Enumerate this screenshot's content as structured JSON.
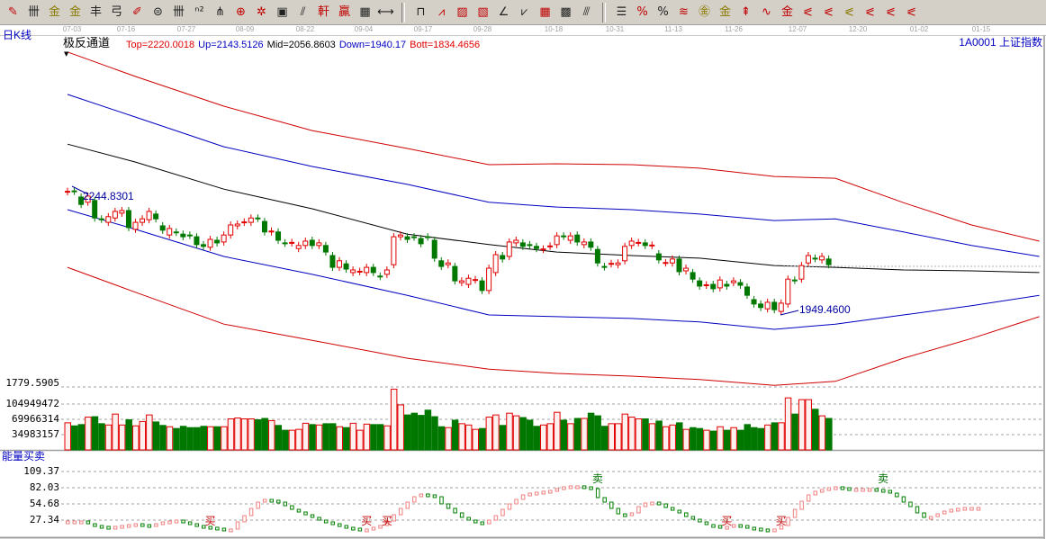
{
  "toolbar": {
    "icons": [
      {
        "name": "draw-pencil",
        "glyph": "✎",
        "tone": "red"
      },
      {
        "name": "vertical-lines",
        "glyph": "卌",
        "tone": ""
      },
      {
        "name": "golden-section",
        "glyph": "金",
        "tone": "gold"
      },
      {
        "name": "golden-section-2",
        "glyph": "金",
        "tone": "gold"
      },
      {
        "name": "fibonacci-lines",
        "glyph": "丰",
        "tone": ""
      },
      {
        "name": "spiral",
        "glyph": "弓",
        "tone": ""
      },
      {
        "name": "pencil-ruler",
        "glyph": "✐",
        "tone": "red"
      },
      {
        "name": "cycle-circle",
        "glyph": "⊜",
        "tone": ""
      },
      {
        "name": "period-lines",
        "glyph": "卌",
        "tone": ""
      },
      {
        "name": "fibonacci-n2",
        "glyph": "ⁿ²",
        "tone": ""
      },
      {
        "name": "pitchfork",
        "glyph": "⋔",
        "tone": ""
      },
      {
        "name": "target-circle",
        "glyph": "⊕",
        "tone": "red"
      },
      {
        "name": "star-target",
        "glyph": "✲",
        "tone": "red"
      },
      {
        "name": "square-target",
        "glyph": "▣",
        "tone": ""
      },
      {
        "name": "speed-lines",
        "glyph": "⫽",
        "tone": ""
      },
      {
        "name": "gann-red",
        "glyph": "軒",
        "tone": "red"
      },
      {
        "name": "gann-box",
        "glyph": "贏",
        "tone": "red"
      },
      {
        "name": "calendar-grid",
        "glyph": "▦",
        "tone": ""
      },
      {
        "name": "horizontal-measure",
        "glyph": "⟷",
        "tone": ""
      },
      {
        "name": "separator",
        "glyph": "",
        "tone": ""
      },
      {
        "name": "box-line",
        "glyph": "⊓",
        "tone": ""
      },
      {
        "name": "fan-lines",
        "glyph": "⩘",
        "tone": "red"
      },
      {
        "name": "box-fan",
        "glyph": "▨",
        "tone": "red"
      },
      {
        "name": "box-fan-red",
        "glyph": "▧",
        "tone": "red"
      },
      {
        "name": "angle-line",
        "glyph": "∠",
        "tone": ""
      },
      {
        "name": "zigzag",
        "glyph": "⩗",
        "tone": ""
      },
      {
        "name": "grid",
        "glyph": "▦",
        "tone": "red"
      },
      {
        "name": "grid-arrow",
        "glyph": "▩",
        "tone": ""
      },
      {
        "name": "parallel-diagonal",
        "glyph": "⫻",
        "tone": ""
      },
      {
        "name": "separator",
        "glyph": "",
        "tone": ""
      },
      {
        "name": "level-lines",
        "glyph": "☰",
        "tone": ""
      },
      {
        "name": "percent-line",
        "glyph": "%",
        "tone": "red"
      },
      {
        "name": "percent",
        "glyph": "%",
        "tone": ""
      },
      {
        "name": "percent-lines",
        "glyph": "≋",
        "tone": "red"
      },
      {
        "name": "gold-circle",
        "glyph": "㊎",
        "tone": "gold"
      },
      {
        "name": "gold-lines",
        "glyph": "金",
        "tone": "gold"
      },
      {
        "name": "arrow-pen",
        "glyph": "⇞",
        "tone": "red"
      },
      {
        "name": "wave-line",
        "glyph": "∿",
        "tone": "red"
      },
      {
        "name": "gold-box",
        "glyph": "金",
        "tone": "red"
      },
      {
        "name": "j-lines",
        "glyph": "⪕",
        "tone": "red"
      },
      {
        "name": "f-lines",
        "glyph": "⪕",
        "tone": "red"
      },
      {
        "name": "gold-angle",
        "glyph": "⪕",
        "tone": "gold"
      },
      {
        "name": "red-lines",
        "glyph": "⪕",
        "tone": "red"
      },
      {
        "name": "red-lines-2",
        "glyph": "⪕",
        "tone": "red"
      },
      {
        "name": "four-lines",
        "glyph": "⪕",
        "tone": "red"
      }
    ]
  },
  "date_axis": {
    "ticks": [
      "07-03",
      "07-16",
      "07-27",
      "08-09",
      "08-22",
      "09-04",
      "09-17",
      "09-28",
      "10-18",
      "10-31",
      "11-13",
      "11-26",
      "12-07",
      "12-20",
      "01-02",
      "01-15"
    ]
  },
  "main_panel": {
    "period_label": "日K线",
    "indicator_name": "极反通道",
    "params": {
      "top": "Top=2220.0018",
      "up": "Up=2143.5126",
      "mid": "Mid=2056.8603",
      "down": "Down=1940.17",
      "bott": "Bott=1834.4656"
    },
    "security": "1A0001  上证指数",
    "high_label": "2244.8301",
    "low_label": "1949.4600",
    "colors": {
      "up": "#e00000",
      "down": "#007800",
      "top": "#d00000",
      "band": "#0000c0",
      "mid": "#000000"
    }
  },
  "volume_panel": {
    "labels": [
      "1779.5905",
      "104949472",
      "69966314",
      "34983157"
    ]
  },
  "energy_panel": {
    "title": "能量买卖",
    "labels": [
      "109.37",
      "82.03",
      "54.68",
      "27.34"
    ],
    "signals": [
      {
        "bar": 21,
        "text": "买",
        "type": "buy"
      },
      {
        "bar": 44,
        "text": "买",
        "type": "buy"
      },
      {
        "bar": 47,
        "text": "买",
        "type": "buy"
      },
      {
        "bar": 78,
        "text": "卖",
        "type": "sell"
      },
      {
        "bar": 97,
        "text": "买",
        "type": "buy"
      },
      {
        "bar": 105,
        "text": "买",
        "type": "buy"
      },
      {
        "bar": 120,
        "text": "卖",
        "type": "sell"
      }
    ],
    "colors": {
      "rise": "#f08080",
      "fall": "#008000",
      "buy": "#c00000",
      "sell": "#007000"
    }
  },
  "chart_data": {
    "type": "candlestick",
    "candles_open_close": [
      [
        2231,
        2232
      ],
      [
        2233,
        2232
      ],
      [
        2219,
        2202
      ],
      [
        2207,
        2221
      ],
      [
        2211,
        2171
      ],
      [
        2169,
        2168
      ],
      [
        2161,
        2174
      ],
      [
        2171,
        2186
      ],
      [
        2182,
        2188
      ],
      [
        2188,
        2149
      ],
      [
        2145,
        2161
      ],
      [
        2161,
        2169
      ],
      [
        2167,
        2186
      ],
      [
        2180,
        2169
      ],
      [
        2153,
        2143
      ],
      [
        2132,
        2147
      ],
      [
        2139,
        2138
      ],
      [
        2134,
        2128
      ],
      [
        2132,
        2131
      ],
      [
        2128,
        2110
      ],
      [
        2110,
        2106
      ],
      [
        2104,
        2122
      ],
      [
        2120,
        2114
      ],
      [
        2116,
        2132
      ],
      [
        2132,
        2155
      ],
      [
        2153,
        2157
      ],
      [
        2161,
        2162
      ],
      [
        2161,
        2171
      ],
      [
        2171,
        2170
      ],
      [
        2163,
        2139
      ],
      [
        2139,
        2141
      ],
      [
        2139,
        2120
      ],
      [
        2114,
        2113
      ],
      [
        2114,
        2115
      ],
      [
        2101,
        2108
      ],
      [
        2108,
        2118
      ],
      [
        2120,
        2108
      ],
      [
        2108,
        2114
      ],
      [
        2108,
        2093
      ],
      [
        2085,
        2058
      ],
      [
        2058,
        2073
      ],
      [
        2066,
        2054
      ],
      [
        2046,
        2052
      ],
      [
        2048,
        2049
      ],
      [
        2046,
        2058
      ],
      [
        2058,
        2046
      ],
      [
        2038,
        2037
      ],
      [
        2042,
        2052
      ],
      [
        2064,
        2128
      ],
      [
        2128,
        2132
      ],
      [
        2128,
        2122
      ],
      [
        2128,
        2127
      ],
      [
        2124,
        2112
      ],
      [
        2128,
        2127
      ],
      [
        2120,
        2079
      ],
      [
        2073,
        2060
      ],
      [
        2064,
        2068
      ],
      [
        2060,
        2027
      ],
      [
        2023,
        2027
      ],
      [
        2019,
        2033
      ],
      [
        2029,
        2030
      ],
      [
        2027,
        2005
      ],
      [
        2005,
        2056
      ],
      [
        2046,
        2087
      ],
      [
        2085,
        2077
      ],
      [
        2083,
        2116
      ],
      [
        2114,
        2120
      ],
      [
        2114,
        2106
      ],
      [
        2110,
        2109
      ],
      [
        2106,
        2101
      ],
      [
        2099,
        2100
      ],
      [
        2106,
        2107
      ],
      [
        2110,
        2130
      ],
      [
        2130,
        2129
      ],
      [
        2120,
        2130
      ],
      [
        2132,
        2116
      ],
      [
        2110,
        2116
      ],
      [
        2116,
        2104
      ],
      [
        2099,
        2068
      ],
      [
        2060,
        2059
      ],
      [
        2066,
        2067
      ],
      [
        2064,
        2068
      ],
      [
        2073,
        2106
      ],
      [
        2108,
        2118
      ],
      [
        2114,
        2115
      ],
      [
        2114,
        2108
      ],
      [
        2108,
        2109
      ],
      [
        2089,
        2075
      ],
      [
        2068,
        2069
      ],
      [
        2068,
        2077
      ],
      [
        2077,
        2048
      ],
      [
        2050,
        2056
      ],
      [
        2046,
        2031
      ],
      [
        2027,
        2015
      ],
      [
        2017,
        2018
      ],
      [
        2019,
        2009
      ],
      [
        2011,
        2029
      ],
      [
        2019,
        2015
      ],
      [
        2023,
        2027
      ],
      [
        2023,
        2017
      ],
      [
        2013,
        1994
      ],
      [
        1984,
        1974
      ],
      [
        1974,
        1966
      ],
      [
        1963,
        1978
      ],
      [
        1978,
        1961
      ],
      [
        1957,
        1976
      ],
      [
        1974,
        2031
      ],
      [
        2029,
        2028
      ],
      [
        2031,
        2062
      ],
      [
        2068,
        2085
      ],
      [
        2079,
        2078
      ],
      [
        2075,
        2083
      ],
      [
        2077,
        2064
      ]
    ],
    "high": 2244.8301,
    "low": 1949.46,
    "volume_millions": [
      62,
      55,
      58,
      75,
      76,
      60,
      57,
      82,
      57,
      69,
      55,
      65,
      80,
      64,
      56,
      53,
      49,
      54,
      51,
      51,
      54,
      53,
      53,
      53,
      71,
      73,
      71,
      71,
      69,
      72,
      67,
      56,
      45,
      45,
      47,
      61,
      58,
      57,
      60,
      60,
      53,
      51,
      61,
      45,
      59,
      58,
      58,
      55,
      139,
      103,
      80,
      84,
      79,
      91,
      76,
      53,
      51,
      68,
      60,
      57,
      47,
      49,
      75,
      80,
      56,
      84,
      78,
      74,
      68,
      54,
      57,
      60,
      86,
      68,
      60,
      72,
      72,
      84,
      78,
      54,
      60,
      60,
      82,
      75,
      71,
      71,
      60,
      66,
      53,
      57,
      62,
      47,
      51,
      49,
      45,
      43,
      53,
      45,
      51,
      45,
      58,
      51,
      49,
      57,
      62,
      62,
      119,
      82,
      115,
      115,
      93,
      78,
      72
    ],
    "channel": {
      "bar_index": [
        0,
        10,
        23,
        36,
        50,
        62,
        72,
        83,
        93,
        104,
        113,
        123,
        133,
        143
      ],
      "top": [
        2551,
        2495,
        2427,
        2371,
        2330,
        2293,
        2295,
        2293,
        2285,
        2266,
        2262,
        2206,
        2155,
        2118
      ],
      "up": [
        2454,
        2402,
        2334,
        2289,
        2248,
        2207,
        2196,
        2190,
        2180,
        2165,
        2169,
        2139,
        2108,
        2083
      ],
      "mid": [
        2340,
        2299,
        2237,
        2192,
        2134,
        2110,
        2093,
        2085,
        2079,
        2062,
        2058,
        2052,
        2050,
        2046
      ],
      "down": [
        2190,
        2145,
        2083,
        2042,
        1994,
        1949,
        1945,
        1941,
        1933,
        1916,
        1928,
        1949,
        1970,
        1994
      ],
      "bott": [
        2058,
        2001,
        1928,
        1891,
        1850,
        1825,
        1815,
        1809,
        1801,
        1788,
        1797,
        1850,
        1895,
        1945
      ]
    },
    "energy_values": [
      25.8,
      25.8,
      25.8,
      21.2,
      18.2,
      16.7,
      15.2,
      16.7,
      18.2,
      19.7,
      21.2,
      19.7,
      18.2,
      21.2,
      24.3,
      25.8,
      27.3,
      24.3,
      21.2,
      18.2,
      16.7,
      15.2,
      13.7,
      12.2,
      12.2,
      24.3,
      34.9,
      47.1,
      57.7,
      62.3,
      60.8,
      57.7,
      51.6,
      45.5,
      41.0,
      36.4,
      31.9,
      27.3,
      24.3,
      21.2,
      18.2,
      15.2,
      13.7,
      12.2,
      12.2,
      15.2,
      18.2,
      25.8,
      36.4,
      47.1,
      57.7,
      66.8,
      71.4,
      69.9,
      66.8,
      54.7,
      47.1,
      39.5,
      31.9,
      27.3,
      24.3,
      21.2,
      27.3,
      34.9,
      45.5,
      54.7,
      62.3,
      69.9,
      72.9,
      74.4,
      76.0,
      77.5,
      80.5,
      83.5,
      85.1,
      85.1,
      83.5,
      80.5,
      65.3,
      57.7,
      47.1,
      37.9,
      34.9,
      39.5,
      50.1,
      56.2,
      57.7,
      54.7,
      48.6,
      44.0,
      39.5,
      33.4,
      28.8,
      24.3,
      19.7,
      18.2,
      16.7,
      16.7,
      19.7,
      18.2,
      15.2,
      13.7,
      12.2,
      10.6,
      12.2,
      18.2,
      31.9,
      45.5,
      59.2,
      69.9,
      76.0,
      79.0,
      82.0,
      83.5,
      82.0,
      80.5,
      80.5,
      80.5,
      80.5,
      79.0,
      77.5,
      72.9,
      66.8,
      57.7,
      50.1,
      39.5,
      31.9,
      33.4,
      37.9,
      42.5,
      45.5,
      47.1,
      48.6,
      48.6,
      48.6
    ],
    "volume_axis": [
      34983157,
      69966314,
      104949472
    ],
    "energy_axis": [
      27.34,
      54.68,
      82.03,
      109.37
    ]
  }
}
